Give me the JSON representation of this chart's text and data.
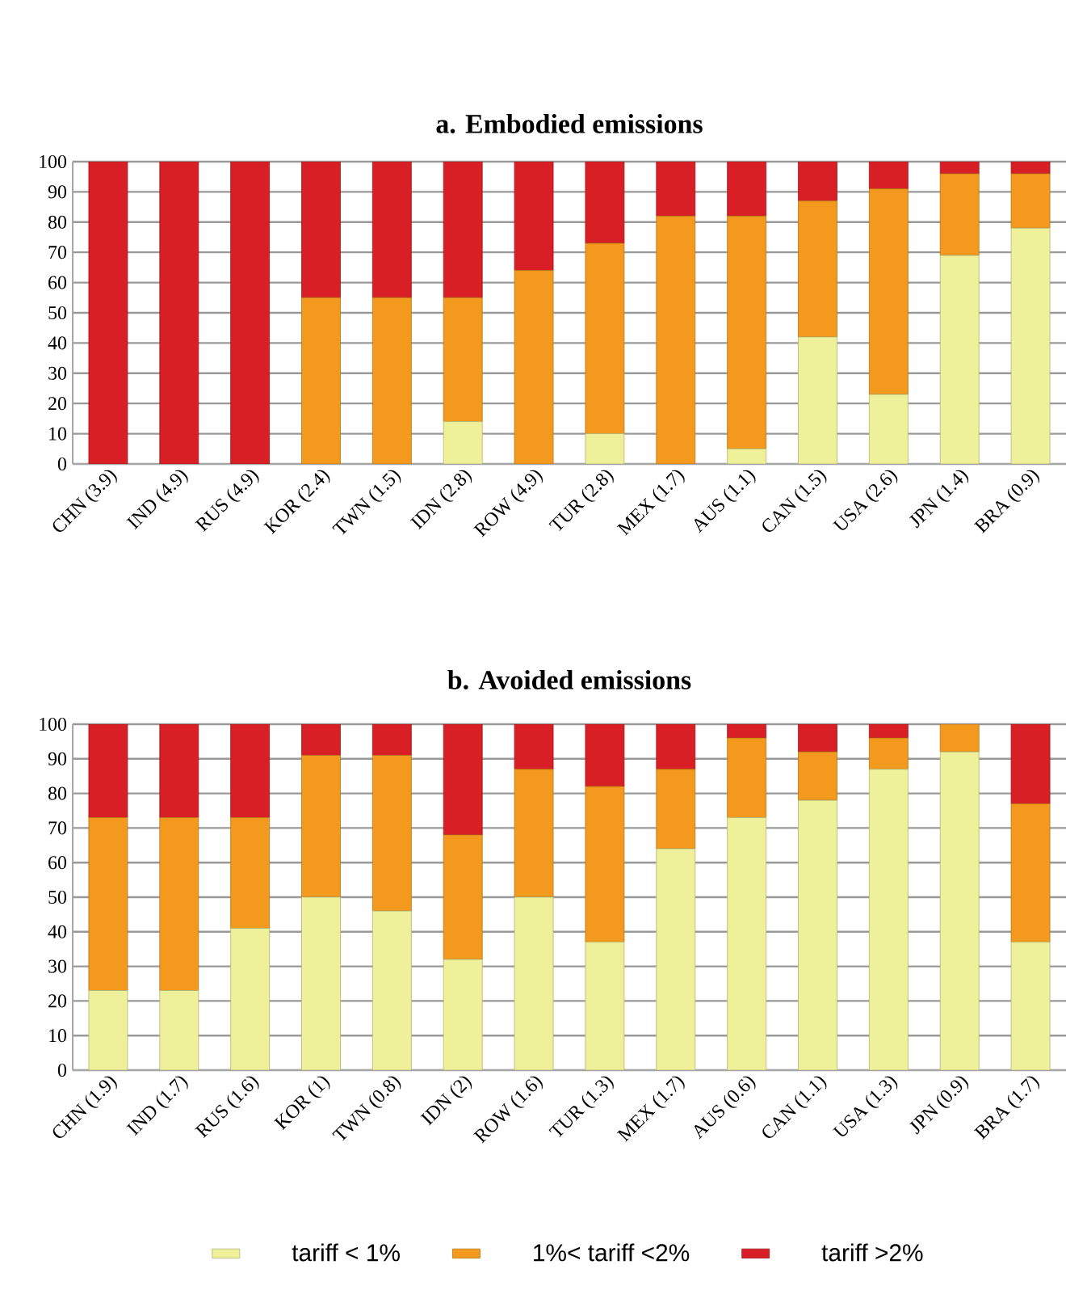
{
  "chart_data": [
    {
      "type": "bar",
      "title": "a. Embodied emissions",
      "stacked": true,
      "categories": [
        "CHN (3.9)",
        "IND (4.9)",
        "RUS (4.9)",
        "KOR (2.4)",
        "TWN (1.5)",
        "IDN (2.8)",
        "ROW (4.9)",
        "TUR (2.8)",
        "MEX (1.7)",
        "AUS (1.1)",
        "CAN (1.5)",
        "USA (2.6)",
        "JPN (1.4)",
        "BRA (0.9)"
      ],
      "series": [
        {
          "color": "#eef09a",
          "values": [
            0,
            0,
            0,
            0,
            0,
            14,
            0,
            10,
            0,
            5,
            42,
            23,
            69,
            78
          ]
        },
        {
          "color": "#f39a1e",
          "values": [
            0,
            0,
            0,
            55,
            55,
            41,
            64,
            63,
            82,
            77,
            45,
            68,
            27,
            18
          ]
        },
        {
          "color": "#d91f26",
          "values": [
            100,
            100,
            100,
            45,
            45,
            45,
            36,
            27,
            18,
            18,
            13,
            9,
            4,
            4
          ]
        }
      ],
      "ylim": [
        0,
        100
      ],
      "yticks": [
        0,
        10,
        20,
        30,
        40,
        50,
        60,
        70,
        80,
        90,
        100
      ],
      "grid": "y",
      "legend": false
    },
    {
      "type": "bar",
      "title": "b. Avoided emissions",
      "stacked": true,
      "categories": [
        "CHN (1.9)",
        "IND (1.7)",
        "RUS (1.6)",
        "KOR (1)",
        "TWN (0.8)",
        "IDN (2)",
        "ROW (1.6)",
        "TUR (1.3)",
        "MEX (1.7)",
        "AUS (0.6)",
        "CAN (1.1)",
        "USA (1.3)",
        "JPN (0.9)",
        "BRA (1.7)"
      ],
      "series": [
        {
          "name": "tariff < 1%",
          "color": "#eef09a",
          "values": [
            23,
            23,
            41,
            50,
            46,
            32,
            50,
            37,
            64,
            73,
            78,
            87,
            92,
            37
          ]
        },
        {
          "name": "1%< tariff <2%",
          "color": "#f39a1e",
          "values": [
            50,
            50,
            32,
            41,
            45,
            36,
            37,
            45,
            23,
            23,
            14,
            9,
            8,
            40
          ]
        },
        {
          "name": "tariff >2%",
          "color": "#d91f26",
          "values": [
            27,
            27,
            27,
            9,
            9,
            32,
            13,
            18,
            13,
            4,
            8,
            4,
            0,
            23
          ]
        }
      ],
      "ylim": [
        0,
        100
      ],
      "yticks": [
        0,
        10,
        20,
        30,
        40,
        50,
        60,
        70,
        80,
        90,
        100
      ],
      "grid": "y",
      "legend": "bottom"
    }
  ]
}
